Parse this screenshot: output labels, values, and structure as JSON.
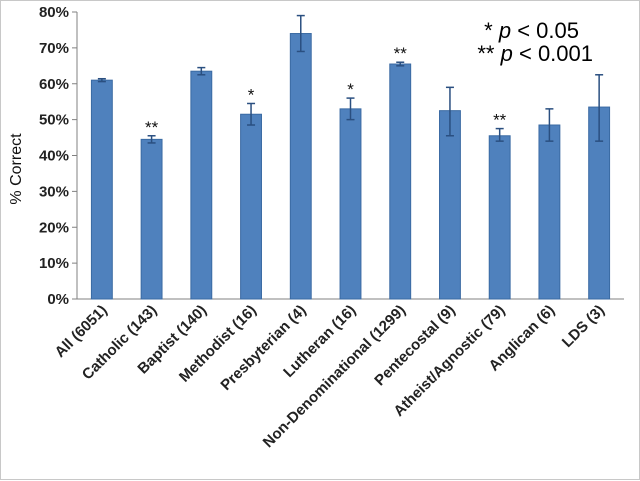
{
  "chart_data": {
    "type": "bar",
    "title": "",
    "xlabel": "",
    "ylabel": "% Correct",
    "ylim": [
      0,
      80
    ],
    "yticks": [
      "0%",
      "10%",
      "20%",
      "30%",
      "40%",
      "50%",
      "60%",
      "70%",
      "80%"
    ],
    "categories": [
      "All (6051)",
      "Catholic (143)",
      "Baptist (140)",
      "Methodist (16)",
      "Presbyterian (4)",
      "Lutheran (16)",
      "Non-Denominational (1299)",
      "Pentecostal (9)",
      "Atheist/Agnostic (79)",
      "Anglican (6)",
      "LDS (3)"
    ],
    "values": [
      61,
      44.5,
      63.5,
      51.5,
      74,
      53,
      65.5,
      52.5,
      45.5,
      48.5,
      53.5
    ],
    "error_low": [
      60.6,
      43.5,
      62.5,
      48.5,
      69,
      50,
      65,
      45.5,
      44,
      44,
      44
    ],
    "error_high": [
      61.4,
      45.5,
      64.5,
      54.5,
      79,
      56,
      66,
      59,
      47.5,
      53,
      62.5
    ],
    "significance": [
      "",
      "**",
      "",
      "*",
      "",
      "*",
      "**",
      "",
      "**",
      "",
      ""
    ],
    "legend": {
      "line1_stars": "*",
      "line2_stars": "**",
      "p_symbol": "p",
      "line1_rest": "< 0.05",
      "line2_rest": "< 0.001"
    },
    "grid": false,
    "bar_color": "#4f81bd",
    "bar_edge_color": "#3a6aa3",
    "error_color": "#2a4f80"
  }
}
